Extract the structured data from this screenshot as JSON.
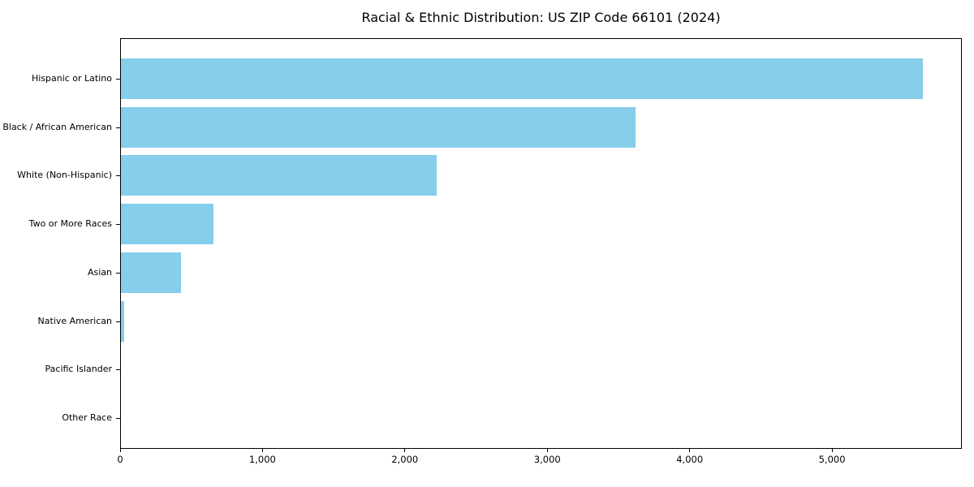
{
  "chart_data": {
    "type": "bar",
    "orientation": "horizontal",
    "title": "Racial & Ethnic Distribution: US ZIP Code 66101 (2024)",
    "categories": [
      "Hispanic or Latino",
      "Black / African American",
      "White (Non-Hispanic)",
      "Two or More Races",
      "Asian",
      "Native American",
      "Pacific Islander",
      "Other Race"
    ],
    "values": [
      5630,
      3615,
      2215,
      650,
      420,
      20,
      0,
      0
    ],
    "xlabel": "",
    "ylabel": "",
    "xlim": [
      0,
      5900
    ],
    "x_ticks": [
      0,
      1000,
      2000,
      3000,
      4000,
      5000
    ],
    "x_tick_labels": [
      "0",
      "1,000",
      "2,000",
      "3,000",
      "4,000",
      "5,000"
    ],
    "bar_color": "#87CEEB",
    "axis_color": "#000000",
    "text_color": "#000000",
    "grid": false,
    "legend": "none"
  }
}
